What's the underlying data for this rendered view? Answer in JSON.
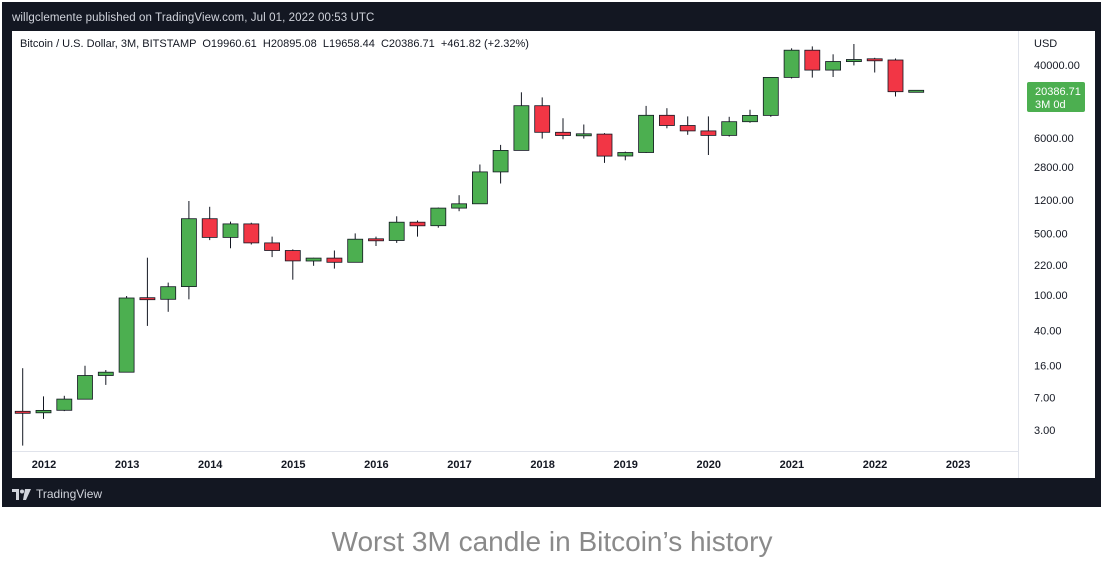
{
  "header": {
    "published": "willgclemente published on TradingView.com, Jul 01, 2022 00:53 UTC"
  },
  "footer": {
    "brand": "TradingView"
  },
  "caption": "Worst 3M candle in Bitcoin’s history",
  "colors": {
    "up": "#4caf50",
    "down": "#f23645",
    "price_badge": "#4caf50"
  },
  "chart_data": {
    "type": "candlestick",
    "legend": "Bitcoin / U.S. Dollar, 3M, BITSTAMP  O19960.61  H20895.08  L19658.44  C20386.71  +461.82 (+2.32%)",
    "ylabel": "USD",
    "yscale": "log",
    "yticks": [
      40000,
      6000,
      2800,
      1200,
      500,
      220,
      100,
      40,
      16,
      7,
      3
    ],
    "ytick_labels": [
      "40000.00",
      "6000.00",
      "2800.00",
      "1200.00",
      "500.00",
      "220.00",
      "100.00",
      "40.00",
      "16.00",
      "7.00",
      "3.00"
    ],
    "xticks": [
      "2012",
      "2013",
      "2014",
      "2015",
      "2016",
      "2017",
      "2018",
      "2019",
      "2020",
      "2021",
      "2022",
      "2023"
    ],
    "last_price": "20386.71",
    "last_price_sub": "3M 0d",
    "candles": [
      {
        "t": "2011 Q4",
        "o": 4.8,
        "h": 15.0,
        "l": 2.0,
        "c": 4.7
      },
      {
        "t": "2012 Q1",
        "o": 4.7,
        "h": 7.2,
        "l": 4.0,
        "c": 5.0
      },
      {
        "t": "2012 Q2",
        "o": 5.0,
        "h": 7.3,
        "l": 4.9,
        "c": 6.7
      },
      {
        "t": "2012 Q3",
        "o": 6.7,
        "h": 16.0,
        "l": 6.7,
        "c": 12.4
      },
      {
        "t": "2012 Q4",
        "o": 12.4,
        "h": 14.3,
        "l": 9.7,
        "c": 13.5
      },
      {
        "t": "2013 Q1",
        "o": 13.5,
        "h": 98.0,
        "l": 13.4,
        "c": 93.0
      },
      {
        "t": "2013 Q2",
        "o": 93.0,
        "h": 266.0,
        "l": 45.0,
        "c": 90.0
      },
      {
        "t": "2013 Q3",
        "o": 90.0,
        "h": 139.0,
        "l": 65.0,
        "c": 125.0
      },
      {
        "t": "2013 Q4",
        "o": 125.0,
        "h": 1163.0,
        "l": 90.0,
        "c": 732.0
      },
      {
        "t": "2014 Q1",
        "o": 732.0,
        "h": 1000.0,
        "l": 420.0,
        "c": 450.0
      },
      {
        "t": "2014 Q2",
        "o": 450.0,
        "h": 680.0,
        "l": 340.0,
        "c": 640.0
      },
      {
        "t": "2014 Q3",
        "o": 640.0,
        "h": 660.0,
        "l": 375.0,
        "c": 390.0
      },
      {
        "t": "2014 Q4",
        "o": 390.0,
        "h": 460.0,
        "l": 270.0,
        "c": 320.0
      },
      {
        "t": "2015 Q1",
        "o": 320.0,
        "h": 330.0,
        "l": 150.0,
        "c": 244.0
      },
      {
        "t": "2015 Q2",
        "o": 244.0,
        "h": 265.0,
        "l": 215.0,
        "c": 263.0
      },
      {
        "t": "2015 Q3",
        "o": 263.0,
        "h": 320.0,
        "l": 200.0,
        "c": 236.0
      },
      {
        "t": "2015 Q4",
        "o": 236.0,
        "h": 500.0,
        "l": 236.0,
        "c": 430.0
      },
      {
        "t": "2016 Q1",
        "o": 430.0,
        "h": 460.0,
        "l": 360.0,
        "c": 416.0
      },
      {
        "t": "2016 Q2",
        "o": 416.0,
        "h": 780.0,
        "l": 390.0,
        "c": 670.0
      },
      {
        "t": "2016 Q3",
        "o": 670.0,
        "h": 700.0,
        "l": 460.0,
        "c": 610.0
      },
      {
        "t": "2016 Q4",
        "o": 610.0,
        "h": 980.0,
        "l": 580.0,
        "c": 965.0
      },
      {
        "t": "2017 Q1",
        "o": 965.0,
        "h": 1350.0,
        "l": 890.0,
        "c": 1080.0
      },
      {
        "t": "2017 Q2",
        "o": 1080.0,
        "h": 3000.0,
        "l": 1080.0,
        "c": 2480.0
      },
      {
        "t": "2017 Q3",
        "o": 2480.0,
        "h": 5000.0,
        "l": 1830.0,
        "c": 4340.0
      },
      {
        "t": "2017 Q4",
        "o": 4340.0,
        "h": 19666.0,
        "l": 4340.0,
        "c": 13880.0
      },
      {
        "t": "2018 Q1",
        "o": 13880.0,
        "h": 17200.0,
        "l": 5900.0,
        "c": 6940.0
      },
      {
        "t": "2018 Q2",
        "o": 6940.0,
        "h": 10000.0,
        "l": 5800.0,
        "c": 6390.0
      },
      {
        "t": "2018 Q3",
        "o": 6390.0,
        "h": 8500.0,
        "l": 5900.0,
        "c": 6630.0
      },
      {
        "t": "2018 Q4",
        "o": 6630.0,
        "h": 6800.0,
        "l": 3130.0,
        "c": 3740.0
      },
      {
        "t": "2019 Q1",
        "o": 3740.0,
        "h": 4200.0,
        "l": 3350.0,
        "c": 4100.0
      },
      {
        "t": "2019 Q2",
        "o": 4100.0,
        "h": 13800.0,
        "l": 4050.0,
        "c": 10800.0
      },
      {
        "t": "2019 Q3",
        "o": 10800.0,
        "h": 13000.0,
        "l": 7700.0,
        "c": 8290.0
      },
      {
        "t": "2019 Q4",
        "o": 8290.0,
        "h": 10500.0,
        "l": 6500.0,
        "c": 7200.0
      },
      {
        "t": "2020 Q1",
        "o": 7200.0,
        "h": 10500.0,
        "l": 3850.0,
        "c": 6400.0
      },
      {
        "t": "2020 Q2",
        "o": 6400.0,
        "h": 10400.0,
        "l": 6200.0,
        "c": 9140.0
      },
      {
        "t": "2020 Q3",
        "o": 9140.0,
        "h": 12500.0,
        "l": 8900.0,
        "c": 10780.0
      },
      {
        "t": "2020 Q4",
        "o": 10780.0,
        "h": 29300.0,
        "l": 10400.0,
        "c": 28990.0
      },
      {
        "t": "2021 Q1",
        "o": 28990.0,
        "h": 61800.0,
        "l": 28130.0,
        "c": 58800.0
      },
      {
        "t": "2021 Q2",
        "o": 58800.0,
        "h": 64900.0,
        "l": 28800.0,
        "c": 35040.0
      },
      {
        "t": "2021 Q3",
        "o": 35040.0,
        "h": 52900.0,
        "l": 29300.0,
        "c": 43800.0
      },
      {
        "t": "2021 Q4",
        "o": 43800.0,
        "h": 69000.0,
        "l": 39600.0,
        "c": 46200.0
      },
      {
        "t": "2022 Q1",
        "o": 46200.0,
        "h": 48200.0,
        "l": 32950.0,
        "c": 45500.0
      },
      {
        "t": "2022 Q2",
        "o": 45500.0,
        "h": 47400.0,
        "l": 17600.0,
        "c": 19960.0
      },
      {
        "t": "2022 Q3",
        "o": 19960.61,
        "h": 20895.08,
        "l": 19658.44,
        "c": 20386.71
      }
    ]
  }
}
